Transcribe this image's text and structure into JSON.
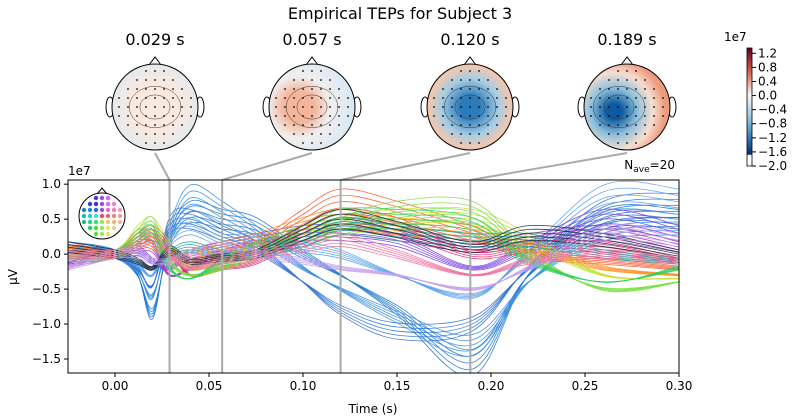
{
  "title": "Empirical TEPs for Subject 3",
  "nave_label": "N",
  "nave_sub": "ave",
  "nave_value": "=20",
  "topomaps": [
    {
      "time_label": "0.029 s",
      "time": 0.029,
      "pattern": "mild-red-center"
    },
    {
      "time_label": "0.057 s",
      "time": 0.057,
      "pattern": "small-red-left"
    },
    {
      "time_label": "0.120 s",
      "time": 0.12,
      "pattern": "blue-center-red-rim"
    },
    {
      "time_label": "0.189 s",
      "time": 0.189,
      "pattern": "blue-left-red-front"
    }
  ],
  "colorbar": {
    "exponent": "1e7",
    "ticks": [
      "1.2",
      "0.8",
      "0.4",
      "0.0",
      "−0.4",
      "−0.8",
      "−1.2",
      "−1.6",
      "−2.0"
    ],
    "tick_values": [
      1.2,
      0.8,
      0.4,
      0.0,
      -0.4,
      -0.8,
      -1.2,
      -1.6,
      -2.0
    ],
    "range": [
      -2.0,
      1.35
    ],
    "colormap": "RdBu_r"
  },
  "chart_data": {
    "type": "line",
    "xlabel": "Time (s)",
    "ylabel": "µV",
    "y_exponent": "1e7",
    "xlim": [
      -0.025,
      0.3
    ],
    "ylim": [
      -1.7,
      1.06
    ],
    "xticks": [
      0.0,
      0.05,
      0.1,
      0.15,
      0.2,
      0.25,
      0.3
    ],
    "xtick_labels": [
      "0.00",
      "0.05",
      "0.10",
      "0.15",
      "0.20",
      "0.25",
      "0.30"
    ],
    "yticks": [
      1.0,
      0.5,
      0.0,
      -0.5,
      -1.0,
      -1.5
    ],
    "ytick_labels": [
      "1.0",
      "0.5",
      "0.0",
      "−0.5",
      "−1.0",
      "−1.5"
    ],
    "vlines": [
      0.029,
      0.057,
      0.12,
      0.189
    ],
    "grid": false,
    "x": [
      -0.025,
      0,
      0.012,
      0.02,
      0.029,
      0.04,
      0.057,
      0.075,
      0.1,
      0.12,
      0.15,
      0.19,
      0.22,
      0.26,
      0.3
    ],
    "series": [
      {
        "color": "#1f78d1",
        "values": [
          0.1,
          0,
          -0.3,
          -0.85,
          0.2,
          0.6,
          0.5,
          0.4,
          0.0,
          -0.3,
          -0.8,
          -1.55,
          -0.3,
          0.5,
          0.5
        ]
      },
      {
        "color": "#3b8fe0",
        "values": [
          0.1,
          0,
          -0.25,
          -0.6,
          0.3,
          0.8,
          0.6,
          0.3,
          -0.2,
          -0.5,
          -0.9,
          -1.3,
          -0.4,
          0.3,
          0.4
        ]
      },
      {
        "color": "#2a6fd6",
        "values": [
          0.05,
          0,
          -0.2,
          -0.45,
          0.4,
          0.5,
          0.3,
          0.1,
          -0.4,
          -0.8,
          -1.1,
          -1.0,
          -0.2,
          0.6,
          0.7
        ]
      },
      {
        "color": "#5aa0f0",
        "values": [
          0.0,
          0,
          -0.15,
          -0.3,
          0.2,
          0.4,
          0.2,
          0.2,
          0.1,
          0.0,
          -0.3,
          -0.6,
          0.0,
          0.8,
          0.75
        ]
      },
      {
        "color": "#7b3fe0",
        "values": [
          -0.1,
          0,
          0.05,
          -0.1,
          -0.2,
          0.0,
          0.1,
          0.2,
          0.3,
          0.3,
          0.2,
          -0.2,
          0.1,
          0.5,
          0.3
        ]
      },
      {
        "color": "#a040c0",
        "values": [
          -0.15,
          0,
          0.1,
          0.1,
          -0.3,
          -0.2,
          0.0,
          0.1,
          0.2,
          0.4,
          0.3,
          0.1,
          0.2,
          0.3,
          0.1
        ]
      },
      {
        "color": "#e0306a",
        "values": [
          0.05,
          0,
          0.2,
          0.3,
          0.1,
          -0.3,
          -0.2,
          -0.1,
          0.3,
          0.5,
          0.4,
          0.0,
          0.1,
          0.1,
          -0.1
        ]
      },
      {
        "color": "#ff5a30",
        "values": [
          0.1,
          0,
          0.25,
          0.2,
          0.0,
          -0.1,
          0.0,
          0.1,
          0.5,
          0.75,
          0.6,
          0.3,
          0.0,
          -0.1,
          -0.2
        ]
      },
      {
        "color": "#ff9020",
        "values": [
          0.05,
          0,
          0.2,
          0.15,
          0.0,
          0.0,
          0.1,
          0.2,
          0.4,
          0.5,
          0.4,
          0.3,
          0.1,
          -0.2,
          -0.3
        ]
      },
      {
        "color": "#c8e030",
        "values": [
          0.0,
          0,
          0.3,
          0.4,
          0.1,
          -0.2,
          -0.1,
          0.1,
          0.3,
          0.4,
          0.5,
          0.5,
          0.2,
          -0.3,
          -0.35
        ]
      },
      {
        "color": "#7ae040",
        "values": [
          -0.05,
          0,
          0.25,
          0.4,
          -0.1,
          -0.3,
          -0.2,
          0.0,
          0.2,
          0.4,
          0.6,
          0.6,
          0.0,
          -0.5,
          -0.4
        ]
      },
      {
        "color": "#30d060",
        "values": [
          0.0,
          0,
          0.2,
          0.3,
          -0.2,
          -0.35,
          -0.1,
          0.1,
          0.3,
          0.5,
          0.5,
          0.4,
          -0.1,
          -0.4,
          -0.2
        ]
      },
      {
        "color": "#20a0a0",
        "values": [
          0.1,
          0,
          -0.1,
          -0.2,
          0.0,
          0.1,
          0.0,
          0.0,
          0.2,
          0.4,
          0.3,
          0.2,
          0.2,
          0.0,
          -0.1
        ]
      },
      {
        "color": "#222244",
        "values": [
          0.1,
          0,
          -0.1,
          -0.2,
          0.05,
          -0.1,
          -0.05,
          0.0,
          0.3,
          0.5,
          0.35,
          0.1,
          0.3,
          0.2,
          0.0
        ]
      },
      {
        "color": "#c8a0f0",
        "values": [
          -0.2,
          0,
          0.0,
          -0.1,
          -0.1,
          0.0,
          0.1,
          0.0,
          -0.1,
          -0.2,
          -0.3,
          -0.5,
          -0.2,
          0.3,
          0.2
        ]
      },
      {
        "color": "#f070a0",
        "values": [
          0.0,
          0,
          0.15,
          0.25,
          0.0,
          -0.2,
          -0.1,
          0.0,
          0.1,
          0.2,
          0.0,
          -0.3,
          -0.1,
          0.0,
          -0.1
        ]
      }
    ]
  }
}
